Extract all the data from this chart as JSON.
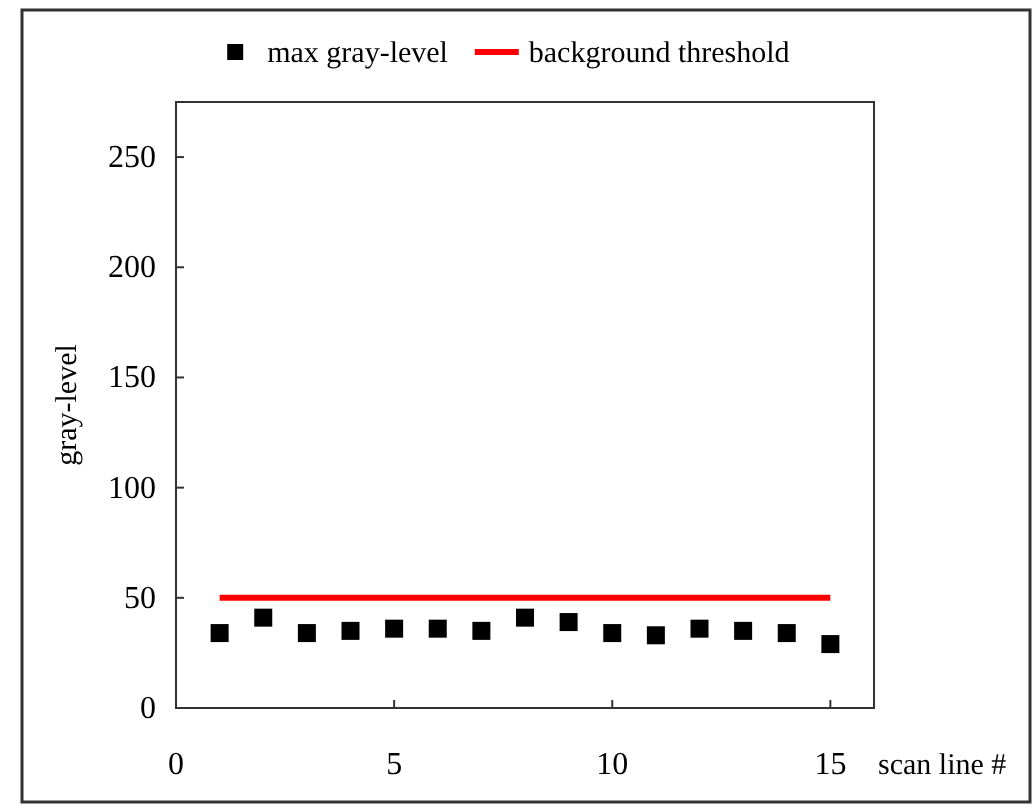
{
  "chart_data": {
    "type": "scatter",
    "xlabel": "scan line #",
    "ylabel": "gray-level",
    "xlim": [
      0,
      16
    ],
    "xticks": [
      0,
      5,
      10,
      15
    ],
    "ylim": [
      0,
      275
    ],
    "yticks": [
      0,
      50,
      100,
      150,
      200,
      250
    ],
    "legend": "top",
    "grid": false,
    "marker": "square",
    "series": [
      {
        "name": "max gray-level",
        "color": "#000000",
        "x": [
          1,
          2,
          3,
          4,
          5,
          6,
          7,
          8,
          9,
          10,
          11,
          12,
          13,
          14,
          15
        ],
        "values": [
          34,
          41,
          34,
          35,
          36,
          36,
          35,
          41,
          39,
          34,
          33,
          36,
          35,
          34,
          29
        ]
      },
      {
        "name": "background threshold",
        "type": "line",
        "color": "#ff0000",
        "x": [
          1,
          15
        ],
        "values": [
          50,
          50
        ],
        "marker": "none"
      }
    ]
  }
}
